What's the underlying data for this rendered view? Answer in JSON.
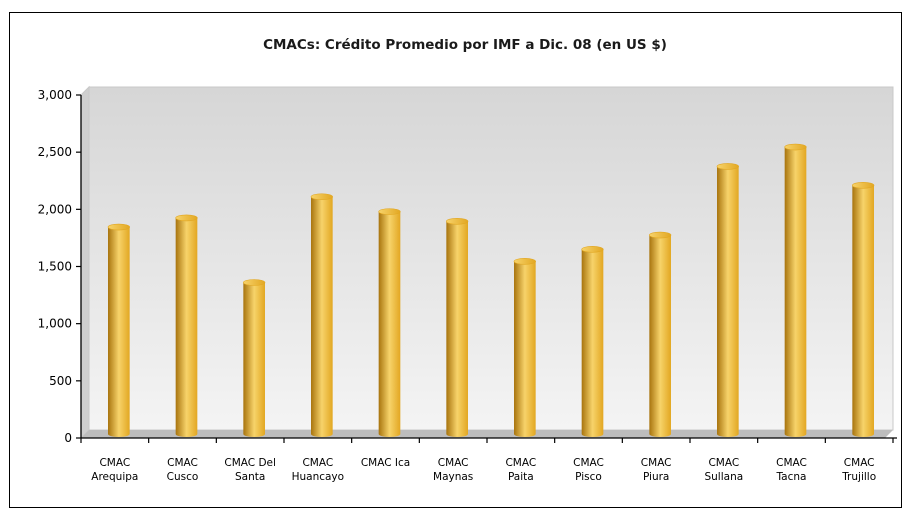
{
  "chart_data": {
    "type": "bar",
    "title": "CMACs: Crédito Promedio por IMF a  Dic. 08 (en  US $)",
    "xlabel": "",
    "ylabel": "",
    "ylim": [
      0,
      3000
    ],
    "yticks": [
      0,
      500,
      1000,
      1500,
      2000,
      2500,
      3000
    ],
    "ytick_labels": [
      "0",
      "500",
      "1,000",
      "1,500",
      "2,000",
      "2,500",
      "3,000"
    ],
    "grid": false,
    "legend": "none",
    "categories": [
      [
        "CMAC",
        "Arequipa"
      ],
      [
        "CMAC",
        "Cusco"
      ],
      [
        "CMAC Del",
        "Santa"
      ],
      [
        "CMAC",
        "Huancayo"
      ],
      [
        "CMAC Ica"
      ],
      [
        "CMAC",
        "Maynas"
      ],
      [
        "CMAC",
        "Paita"
      ],
      [
        "CMAC",
        "Pisco"
      ],
      [
        "CMAC",
        "Piura"
      ],
      [
        "CMAC",
        "Sullana"
      ],
      [
        "CMAC",
        "Tacna"
      ],
      [
        "CMAC",
        "Trujillo"
      ]
    ],
    "values": [
      1810,
      1890,
      1325,
      2075,
      1945,
      1860,
      1510,
      1615,
      1740,
      2340,
      2510,
      2175
    ],
    "colors": {
      "bar_light": "#f7d36a",
      "bar_mid": "#e2a722",
      "bar_dark": "#a8740e",
      "plot_background": "#e5e5e5",
      "frame": "#000000"
    }
  }
}
